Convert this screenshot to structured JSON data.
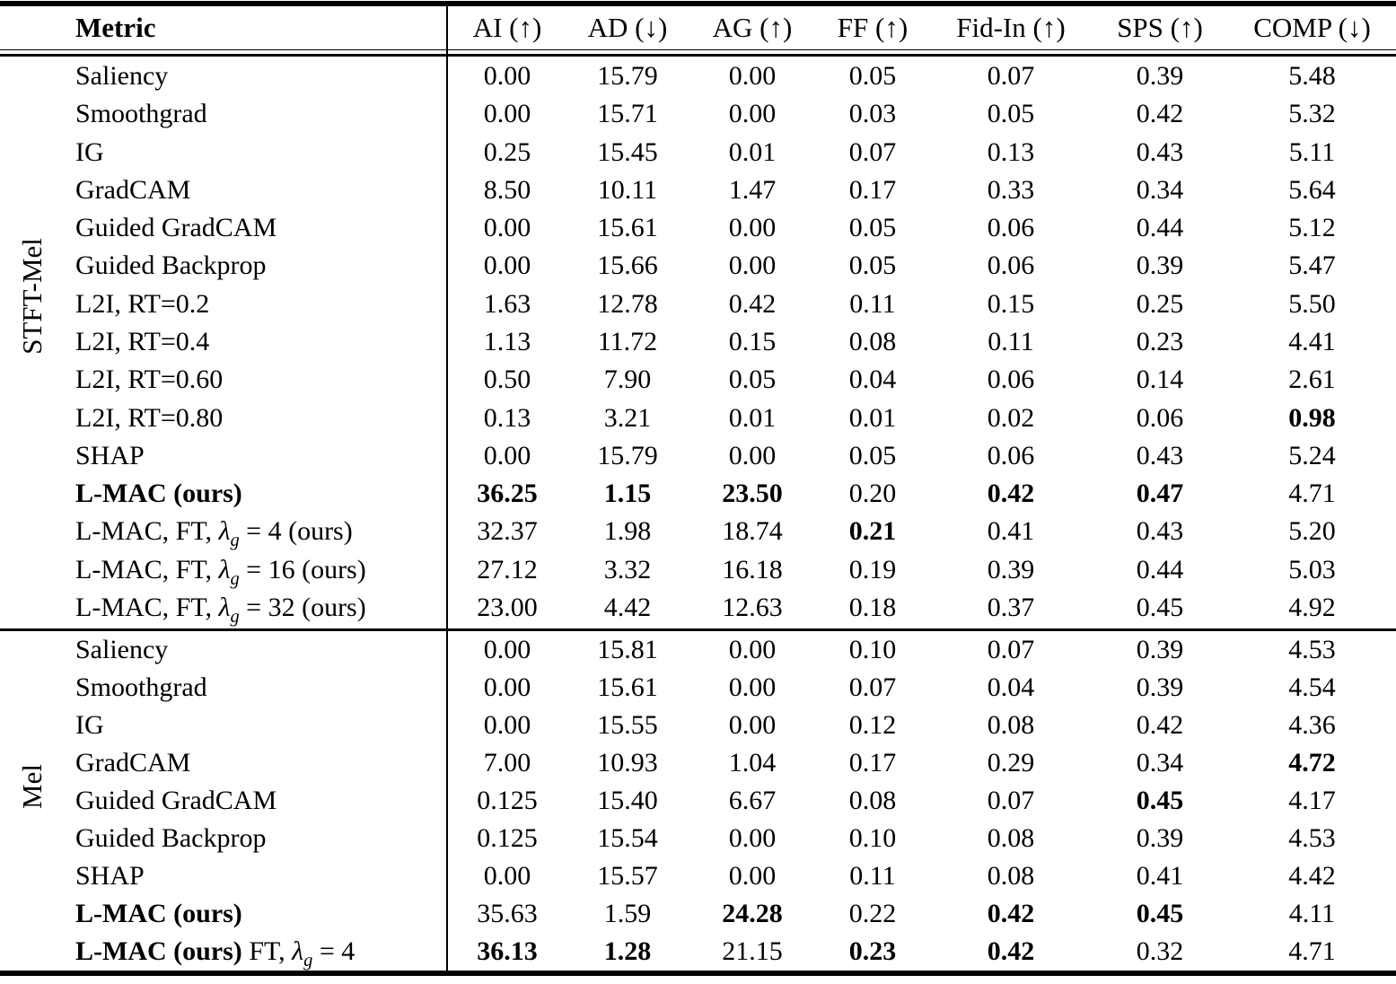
{
  "table": {
    "columns": [
      {
        "label": "Metric"
      },
      {
        "label": "AI (↑)"
      },
      {
        "label": "AD (↓)"
      },
      {
        "label": "AG (↑)"
      },
      {
        "label": "FF (↑)"
      },
      {
        "label": "Fid-In (↑)"
      },
      {
        "label": "SPS (↑)"
      },
      {
        "label": "COMP (↓)"
      }
    ],
    "sections": [
      {
        "group_label": "STFT-Mel",
        "rows": [
          {
            "label": [
              {
                "t": "Saliency"
              }
            ],
            "values": [
              "0.00",
              "15.79",
              "0.00",
              "0.05",
              "0.07",
              "0.39",
              "5.48"
            ],
            "bold_values": []
          },
          {
            "label": [
              {
                "t": "Smoothgrad"
              }
            ],
            "values": [
              "0.00",
              "15.71",
              "0.00",
              "0.03",
              "0.05",
              "0.42",
              "5.32"
            ],
            "bold_values": []
          },
          {
            "label": [
              {
                "t": "IG"
              }
            ],
            "values": [
              "0.25",
              "15.45",
              "0.01",
              "0.07",
              "0.13",
              "0.43",
              "5.11"
            ],
            "bold_values": []
          },
          {
            "label": [
              {
                "t": "GradCAM"
              }
            ],
            "values": [
              "8.50",
              "10.11",
              "1.47",
              "0.17",
              "0.33",
              "0.34",
              "5.64"
            ],
            "bold_values": []
          },
          {
            "label": [
              {
                "t": "Guided GradCAM"
              }
            ],
            "values": [
              "0.00",
              "15.61",
              "0.00",
              "0.05",
              "0.06",
              "0.44",
              "5.12"
            ],
            "bold_values": []
          },
          {
            "label": [
              {
                "t": "Guided Backprop"
              }
            ],
            "values": [
              "0.00",
              "15.66",
              "0.00",
              "0.05",
              "0.06",
              "0.39",
              "5.47"
            ],
            "bold_values": []
          },
          {
            "label": [
              {
                "t": "L2I, RT=0.2"
              }
            ],
            "values": [
              "1.63",
              "12.78",
              "0.42",
              "0.11",
              "0.15",
              "0.25",
              "5.50"
            ],
            "bold_values": []
          },
          {
            "label": [
              {
                "t": "L2I, RT=0.4"
              }
            ],
            "values": [
              "1.13",
              "11.72",
              "0.15",
              "0.08",
              "0.11",
              "0.23",
              "4.41"
            ],
            "bold_values": []
          },
          {
            "label": [
              {
                "t": "L2I, RT=0.60"
              }
            ],
            "values": [
              "0.50",
              "7.90",
              "0.05",
              "0.04",
              "0.06",
              "0.14",
              "2.61"
            ],
            "bold_values": []
          },
          {
            "label": [
              {
                "t": "L2I, RT=0.80"
              }
            ],
            "values": [
              "0.13",
              "3.21",
              "0.01",
              "0.01",
              "0.02",
              "0.06",
              "0.98"
            ],
            "bold_values": [
              6
            ]
          },
          {
            "label": [
              {
                "t": "SHAP"
              }
            ],
            "values": [
              "0.00",
              "15.79",
              "0.00",
              "0.05",
              "0.06",
              "0.43",
              "5.24"
            ],
            "bold_values": []
          },
          {
            "label": [
              {
                "t": "L-MAC (ours)",
                "b": true
              }
            ],
            "values": [
              "36.25",
              "1.15",
              "23.50",
              "0.20",
              "0.42",
              "0.47",
              "4.71"
            ],
            "bold_values": [
              0,
              1,
              2,
              4,
              5
            ]
          },
          {
            "label": [
              {
                "t": "L-MAC, FT, "
              },
              {
                "t": "λ",
                "i": true
              },
              {
                "t": "g",
                "i": true,
                "sub": true
              },
              {
                "t": " = 4 (ours)"
              }
            ],
            "values": [
              "32.37",
              "1.98",
              "18.74",
              "0.21",
              "0.41",
              "0.43",
              "5.20"
            ],
            "bold_values": [
              3
            ]
          },
          {
            "label": [
              {
                "t": "L-MAC, FT, "
              },
              {
                "t": "λ",
                "i": true
              },
              {
                "t": "g",
                "i": true,
                "sub": true
              },
              {
                "t": " = 16 (ours)"
              }
            ],
            "values": [
              "27.12",
              "3.32",
              "16.18",
              "0.19",
              "0.39",
              "0.44",
              "5.03"
            ],
            "bold_values": []
          },
          {
            "label": [
              {
                "t": "L-MAC, FT, "
              },
              {
                "t": "λ",
                "i": true
              },
              {
                "t": "g",
                "i": true,
                "sub": true
              },
              {
                "t": " = 32 (ours)"
              }
            ],
            "values": [
              "23.00",
              "4.42",
              "12.63",
              "0.18",
              "0.37",
              "0.45",
              "4.92"
            ],
            "bold_values": []
          }
        ]
      },
      {
        "group_label": "Mel",
        "rows": [
          {
            "label": [
              {
                "t": "Saliency"
              }
            ],
            "values": [
              "0.00",
              "15.81",
              "0.00",
              "0.10",
              "0.07",
              "0.39",
              "4.53"
            ],
            "bold_values": []
          },
          {
            "label": [
              {
                "t": "Smoothgrad"
              }
            ],
            "values": [
              "0.00",
              "15.61",
              "0.00",
              "0.07",
              "0.04",
              "0.39",
              "4.54"
            ],
            "bold_values": []
          },
          {
            "label": [
              {
                "t": "IG"
              }
            ],
            "values": [
              "0.00",
              "15.55",
              "0.00",
              "0.12",
              "0.08",
              "0.42",
              "4.36"
            ],
            "bold_values": []
          },
          {
            "label": [
              {
                "t": "GradCAM"
              }
            ],
            "values": [
              "7.00",
              "10.93",
              "1.04",
              "0.17",
              "0.29",
              "0.34",
              "4.72"
            ],
            "bold_values": [
              6
            ]
          },
          {
            "label": [
              {
                "t": "Guided GradCAM"
              }
            ],
            "values": [
              "0.125",
              "15.40",
              "6.67",
              "0.08",
              "0.07",
              "0.45",
              "4.17"
            ],
            "bold_values": [
              5
            ]
          },
          {
            "label": [
              {
                "t": "Guided Backprop"
              }
            ],
            "values": [
              "0.125",
              "15.54",
              "0.00",
              "0.10",
              "0.08",
              "0.39",
              "4.53"
            ],
            "bold_values": []
          },
          {
            "label": [
              {
                "t": "SHAP"
              }
            ],
            "values": [
              "0.00",
              "15.57",
              "0.00",
              "0.11",
              "0.08",
              "0.41",
              "4.42"
            ],
            "bold_values": []
          },
          {
            "label": [
              {
                "t": "L-MAC (ours)",
                "b": true
              }
            ],
            "values": [
              "35.63",
              "1.59",
              "24.28",
              "0.22",
              "0.42",
              "0.45",
              "4.11"
            ],
            "bold_values": [
              2,
              4,
              5
            ]
          },
          {
            "label": [
              {
                "t": "L-MAC (ours)",
                "b": true
              },
              {
                "t": " FT, "
              },
              {
                "t": "λ",
                "i": true
              },
              {
                "t": "g",
                "i": true,
                "sub": true
              },
              {
                "t": " = 4"
              }
            ],
            "values": [
              "36.13",
              "1.28",
              "21.15",
              "0.23",
              "0.42",
              "0.32",
              "4.71"
            ],
            "bold_values": [
              0,
              1,
              3,
              4
            ]
          }
        ]
      }
    ]
  }
}
